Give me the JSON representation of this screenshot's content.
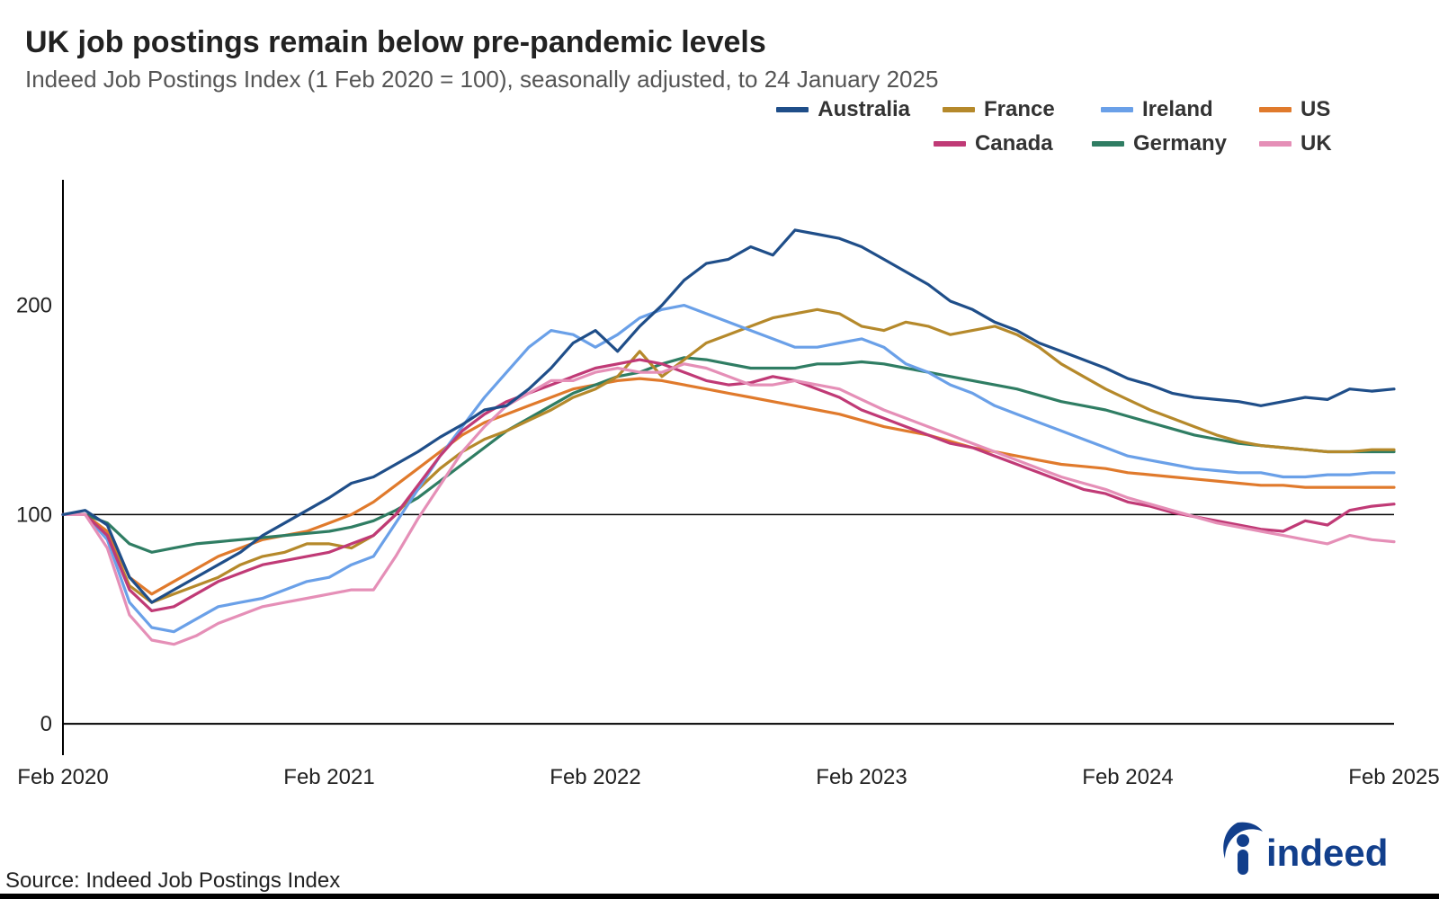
{
  "title": "UK job postings remain below pre-pandemic levels",
  "subtitle": "Indeed Job Postings Index (1 Feb 2020 = 100), seasonally adjusted, to 24 January 2025",
  "source": "Source: Indeed Job Postings Index",
  "logo_text": "indeed",
  "chart": {
    "type": "line",
    "x_start": 0,
    "x_end": 60,
    "ylim": [
      -15,
      260
    ],
    "yticks": [
      0,
      100,
      200
    ],
    "reference_y": 100,
    "xticks": [
      {
        "x": 0,
        "label": "Feb 2020",
        "anchor": "start"
      },
      {
        "x": 12,
        "label": "Feb 2021",
        "anchor": "middle"
      },
      {
        "x": 24,
        "label": "Feb 2022",
        "anchor": "middle"
      },
      {
        "x": 36,
        "label": "Feb 2023",
        "anchor": "middle"
      },
      {
        "x": 48,
        "label": "Feb 2024",
        "anchor": "middle"
      },
      {
        "x": 60,
        "label": "Feb 2025",
        "anchor": "end"
      }
    ],
    "background_color": "#ffffff",
    "axis_color": "#000000",
    "line_width": 3.2,
    "title_fontsize": 34,
    "subtitle_fontsize": 26,
    "tick_fontsize": 24,
    "legend_fontsize": 24,
    "legend": {
      "rows": [
        [
          "Australia",
          "France",
          "Ireland",
          "US"
        ],
        [
          "Canada",
          "Germany",
          "UK"
        ]
      ]
    },
    "series": {
      "Australia": {
        "color": "#1f4e89",
        "data": [
          100,
          102,
          95,
          70,
          58,
          64,
          70,
          76,
          82,
          90,
          96,
          102,
          108,
          115,
          118,
          124,
          130,
          137,
          143,
          150,
          152,
          160,
          170,
          182,
          188,
          178,
          190,
          200,
          212,
          220,
          222,
          228,
          224,
          236,
          234,
          232,
          228,
          222,
          216,
          210,
          202,
          198,
          192,
          188,
          182,
          178,
          174,
          170,
          165,
          162,
          158,
          156,
          155,
          154,
          152,
          154,
          156,
          155,
          160,
          159,
          160
        ]
      },
      "France": {
        "color": "#b5892b",
        "data": [
          100,
          100,
          90,
          66,
          58,
          62,
          66,
          70,
          76,
          80,
          82,
          86,
          86,
          84,
          90,
          100,
          112,
          122,
          130,
          136,
          140,
          145,
          150,
          156,
          160,
          166,
          178,
          166,
          174,
          182,
          186,
          190,
          194,
          196,
          198,
          196,
          190,
          188,
          192,
          190,
          186,
          188,
          190,
          186,
          180,
          172,
          166,
          160,
          155,
          150,
          146,
          142,
          138,
          135,
          133,
          132,
          131,
          130,
          130,
          131,
          131
        ]
      },
      "Ireland": {
        "color": "#6aa0e8",
        "data": [
          100,
          100,
          88,
          58,
          46,
          44,
          50,
          56,
          58,
          60,
          64,
          68,
          70,
          76,
          80,
          96,
          112,
          128,
          142,
          156,
          168,
          180,
          188,
          186,
          180,
          186,
          194,
          198,
          200,
          196,
          192,
          188,
          184,
          180,
          180,
          182,
          184,
          180,
          172,
          168,
          162,
          158,
          152,
          148,
          144,
          140,
          136,
          132,
          128,
          126,
          124,
          122,
          121,
          120,
          120,
          118,
          118,
          119,
          119,
          120,
          120
        ]
      },
      "US": {
        "color": "#e07a2c",
        "data": [
          100,
          100,
          92,
          70,
          62,
          68,
          74,
          80,
          84,
          88,
          90,
          92,
          96,
          100,
          106,
          114,
          122,
          130,
          138,
          144,
          148,
          152,
          156,
          160,
          162,
          164,
          165,
          164,
          162,
          160,
          158,
          156,
          154,
          152,
          150,
          148,
          145,
          142,
          140,
          138,
          135,
          132,
          130,
          128,
          126,
          124,
          123,
          122,
          120,
          119,
          118,
          117,
          116,
          115,
          114,
          114,
          113,
          113,
          113,
          113,
          113
        ]
      },
      "Canada": {
        "color": "#c03a76",
        "data": [
          100,
          100,
          90,
          64,
          54,
          56,
          62,
          68,
          72,
          76,
          78,
          80,
          82,
          86,
          90,
          100,
          114,
          128,
          140,
          148,
          154,
          158,
          162,
          166,
          170,
          172,
          174,
          172,
          168,
          164,
          162,
          163,
          166,
          164,
          160,
          156,
          150,
          146,
          142,
          138,
          134,
          132,
          128,
          124,
          120,
          116,
          112,
          110,
          106,
          104,
          101,
          99,
          97,
          95,
          93,
          92,
          97,
          95,
          102,
          104,
          105
        ]
      },
      "Germany": {
        "color": "#2f7d63",
        "data": [
          100,
          100,
          96,
          86,
          82,
          84,
          86,
          87,
          88,
          89,
          90,
          91,
          92,
          94,
          97,
          102,
          108,
          116,
          124,
          132,
          140,
          146,
          152,
          158,
          162,
          166,
          168,
          172,
          175,
          174,
          172,
          170,
          170,
          170,
          172,
          172,
          173,
          172,
          170,
          168,
          166,
          164,
          162,
          160,
          157,
          154,
          152,
          150,
          147,
          144,
          141,
          138,
          136,
          134,
          133,
          132,
          131,
          130,
          130,
          130,
          130
        ]
      },
      "UK": {
        "color": "#e58fb7",
        "data": [
          100,
          100,
          84,
          52,
          40,
          38,
          42,
          48,
          52,
          56,
          58,
          60,
          62,
          64,
          64,
          80,
          98,
          114,
          130,
          142,
          152,
          158,
          164,
          164,
          168,
          170,
          168,
          168,
          172,
          170,
          166,
          162,
          162,
          164,
          162,
          160,
          155,
          150,
          146,
          142,
          138,
          134,
          130,
          126,
          122,
          118,
          115,
          112,
          108,
          105,
          102,
          99,
          96,
          94,
          92,
          90,
          88,
          86,
          90,
          88,
          87
        ]
      }
    }
  },
  "logo_color": "#123f8c"
}
